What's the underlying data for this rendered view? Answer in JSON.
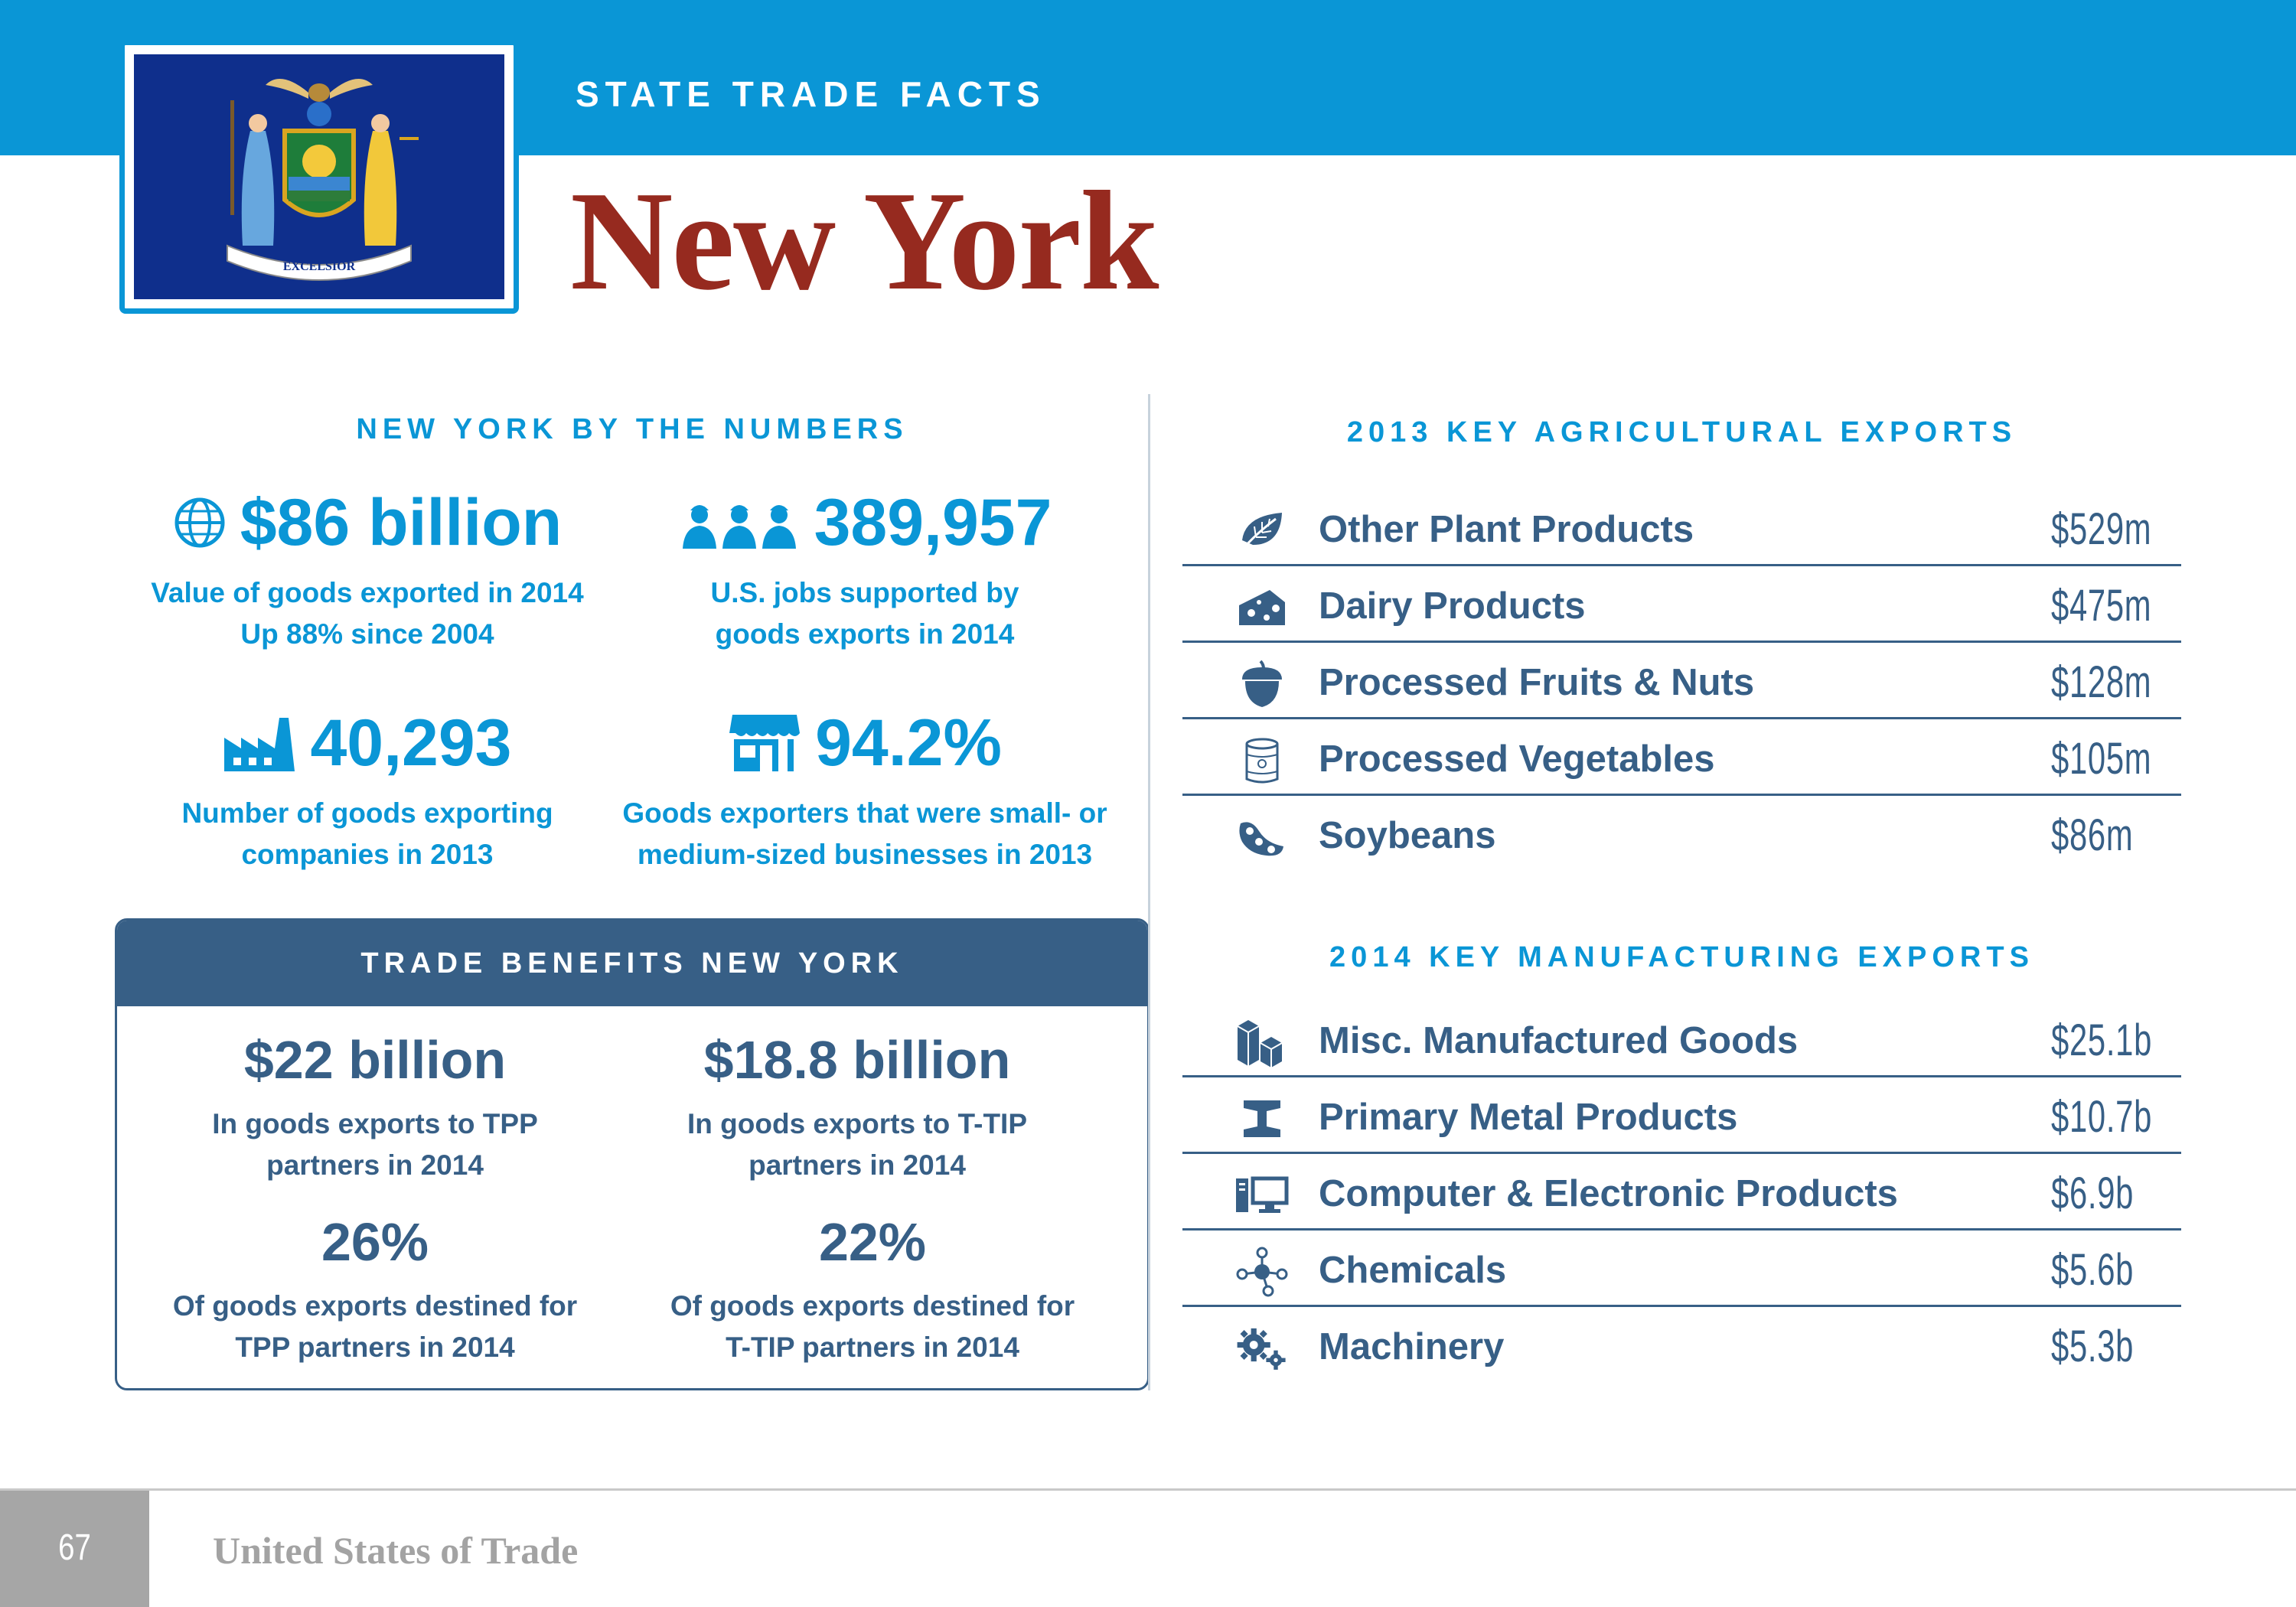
{
  "header": {
    "kicker": "STATE TRADE FACTS",
    "state_name": "New York",
    "flag_motto": "EXCELSIOR"
  },
  "numbers": {
    "heading": "NEW YORK BY THE NUMBERS",
    "stats": [
      {
        "icon": "globe-icon",
        "value": "$86 billion",
        "line1": "Value of goods exported in 2014",
        "line2": "Up 88% since 2004"
      },
      {
        "icon": "workers-icon",
        "value": "389,957",
        "line1": "U.S. jobs supported by",
        "line2": "goods exports in 2014"
      },
      {
        "icon": "factory-icon",
        "value": "40,293",
        "line1": "Number of goods exporting",
        "line2": "companies in 2013"
      },
      {
        "icon": "storefront-icon",
        "value": "94.2%",
        "line1": "Goods exporters that were small- or",
        "line2": "medium-sized businesses in 2013"
      }
    ]
  },
  "benefits": {
    "heading": "TRADE BENEFITS NEW YORK",
    "stats": [
      {
        "value": "$22 billion",
        "line1": "In goods exports to TPP",
        "line2": "partners in 2014"
      },
      {
        "value": "$18.8 billion",
        "line1": "In goods exports to T-TIP",
        "line2": "partners in 2014"
      },
      {
        "value": "26%",
        "line1": "Of goods exports destined for",
        "line2": "TPP partners in 2014"
      },
      {
        "value": "22%",
        "line1": "Of goods exports destined for",
        "line2": "T-TIP partners in 2014"
      }
    ]
  },
  "agricultural": {
    "heading": "2013 KEY AGRICULTURAL EXPORTS",
    "items": [
      {
        "icon": "leaf-icon",
        "label": "Other Plant Products",
        "value": "$529m"
      },
      {
        "icon": "cheese-icon",
        "label": "Dairy Products",
        "value": "$475m"
      },
      {
        "icon": "acorn-icon",
        "label": "Processed Fruits & Nuts",
        "value": "$128m"
      },
      {
        "icon": "can-icon",
        "label": "Processed Vegetables",
        "value": "$105m"
      },
      {
        "icon": "soybean-icon",
        "label": "Soybeans",
        "value": "$86m"
      }
    ]
  },
  "manufacturing": {
    "heading": "2014 KEY MANUFACTURING EXPORTS",
    "items": [
      {
        "icon": "boxes-icon",
        "label": "Misc. Manufactured Goods",
        "value": "$25.1b"
      },
      {
        "icon": "steel-beam-icon",
        "label": "Primary Metal Products",
        "value": "$10.7b"
      },
      {
        "icon": "computer-icon",
        "label": "Computer & Electronic Products",
        "value": "$6.9b"
      },
      {
        "icon": "molecule-icon",
        "label": "Chemicals",
        "value": "$5.6b"
      },
      {
        "icon": "gears-icon",
        "label": "Machinery",
        "value": "$5.3b"
      }
    ]
  },
  "footer": {
    "page_number": "67",
    "publication": "United States of Trade"
  },
  "colors": {
    "header_blue": "#0a96d6",
    "title_red": "#962a1f",
    "navy": "#375f86",
    "flag_blue": "#0f2f8c"
  }
}
